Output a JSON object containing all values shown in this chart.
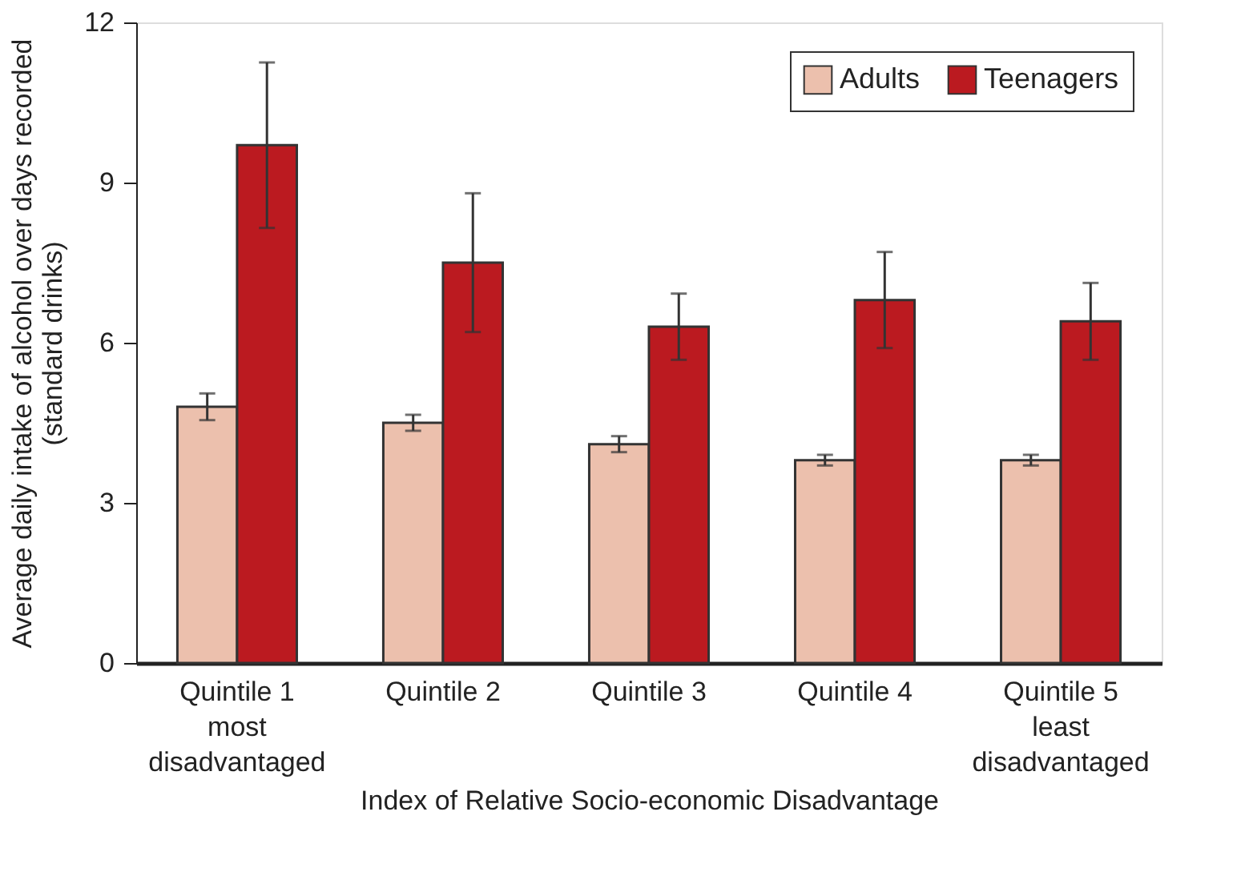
{
  "chart_data": {
    "type": "bar",
    "xlabel": "Index of Relative Socio-economic Disadvantage",
    "ylabel": "Average daily intake of alcohol over days recorded\n(standard drinks)",
    "categories": [
      "Quintile 1\nmost\ndisadvantaged",
      "Quintile 2",
      "Quintile 3",
      "Quintile 4",
      "Quintile 5\nleast\ndisadvantaged"
    ],
    "series": [
      {
        "name": "Adults",
        "color": "#ecc0ad",
        "values": [
          4.8,
          4.5,
          4.1,
          3.8,
          3.8
        ],
        "errors": [
          0.25,
          0.15,
          0.15,
          0.1,
          0.1
        ]
      },
      {
        "name": "Teenagers",
        "color": "#bb1a20",
        "values": [
          9.7,
          7.5,
          6.3,
          6.8,
          6.4
        ],
        "errors": [
          1.55,
          1.3,
          0.62,
          0.9,
          0.72
        ]
      }
    ],
    "ylim": [
      0,
      12
    ],
    "yticks": [
      0,
      3,
      6,
      9,
      12
    ],
    "grid": false,
    "legend": "top right"
  }
}
